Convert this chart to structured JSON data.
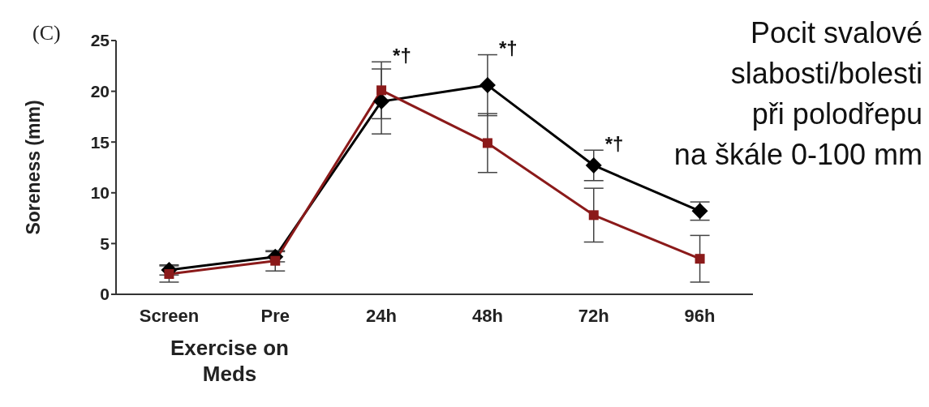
{
  "chart_data": {
    "type": "line",
    "ylabel": "Soreness (mm)",
    "xlabel": "Exercise on Meds",
    "categories": [
      "Screen",
      "Pre",
      "24h",
      "48h",
      "72h",
      "96h"
    ],
    "ylim": [
      0,
      25
    ],
    "yticks": [
      0,
      5,
      10,
      15,
      20,
      25
    ],
    "series": [
      {
        "color": "#000000",
        "marker": "diamond",
        "values": [
          2.4,
          3.7,
          19,
          20.6,
          12.7,
          8.2
        ],
        "errors": [
          0.5,
          0.5,
          3.2,
          3,
          1.5,
          0.9
        ]
      },
      {
        "color": "#8b1a1a",
        "marker": "square",
        "values": [
          2.0,
          3.3,
          20.1,
          14.9,
          7.8,
          3.5
        ],
        "errors": [
          0.8,
          1,
          2.8,
          2.9,
          2.65,
          2.3
        ]
      }
    ],
    "annotations": [
      "(C)",
      "Pocit svalové\nslabosti/bolesti\npři polodřepu\nna škále 0-100 mm",
      {
        "text": "*†",
        "x": "24h",
        "y": 22.9
      },
      {
        "text": "*†",
        "x": "48h",
        "y": 23.6
      },
      {
        "text": "*†",
        "x": "72h",
        "y": 14.2
      }
    ]
  }
}
